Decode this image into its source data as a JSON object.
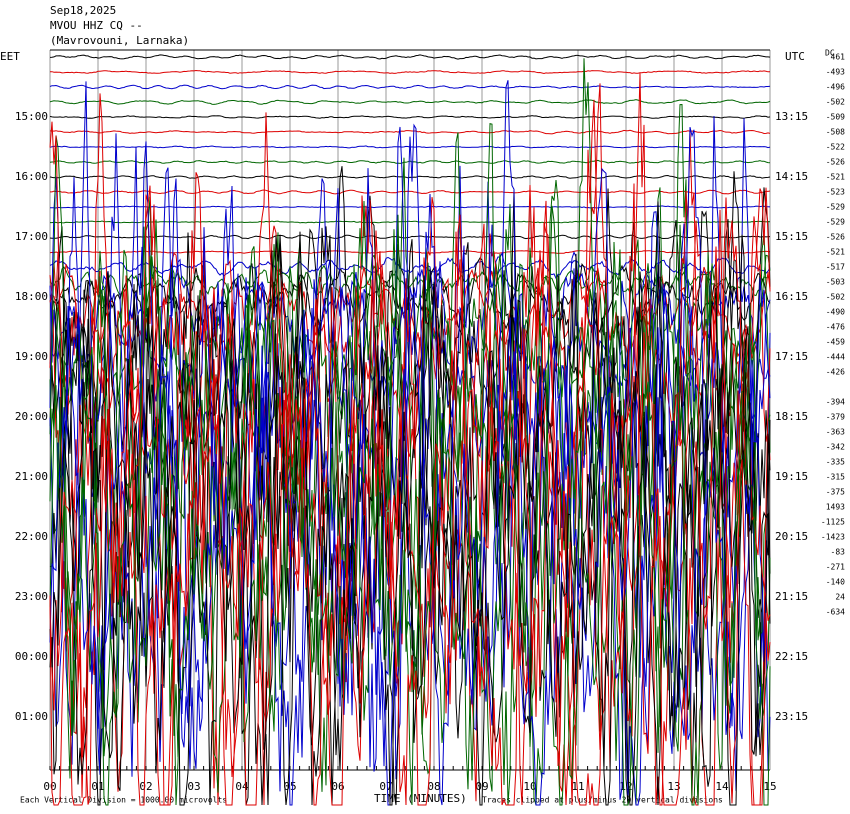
{
  "chart_data": {
    "type": "helicorder",
    "title": "Sep18,2025",
    "station": "MVOU HHZ CQ --",
    "location": "(Mavrovouni, Larnaka)",
    "left_zone": "EET",
    "right_zone": "UTC",
    "dc_label": "DC",
    "xlabel": "TIME (MINUTES)",
    "scale_note": "Each Vertical Division = 1000.00 microvolts",
    "clip_note": "Traces clipped at plus/minus 20 vertical divisions",
    "xlim": [
      0,
      15
    ],
    "xticks": [
      {
        "value": 0,
        "label": "00"
      },
      {
        "value": 1,
        "label": "01"
      },
      {
        "value": 2,
        "label": "02"
      },
      {
        "value": 3,
        "label": "03"
      },
      {
        "value": 4,
        "label": "04"
      },
      {
        "value": 5,
        "label": "05"
      },
      {
        "value": 6,
        "label": "06"
      },
      {
        "value": 7,
        "label": "07"
      },
      {
        "value": 8,
        "label": "08"
      },
      {
        "value": 9,
        "label": "09"
      },
      10,
      11,
      12,
      13,
      14,
      15
    ],
    "left_times": [
      "15:00",
      "16:00",
      "17:00",
      "18:00",
      "19:00",
      "20:00",
      "21:00",
      "22:00",
      "23:00",
      "00:00",
      "01:00"
    ],
    "right_times": [
      "13:15",
      "14:15",
      "15:15",
      "16:15",
      "17:15",
      "18:15",
      "19:15",
      "20:15",
      "21:15",
      "22:15",
      "23:15"
    ],
    "dc_offsets": [
      461,
      -493,
      -496,
      -502,
      -509,
      -508,
      -522,
      -526,
      -521,
      -523,
      -529,
      -529,
      -526,
      -521,
      -517,
      -503,
      -502,
      -490,
      -476,
      -459,
      -444,
      -426,
      null,
      -394,
      -379,
      -363,
      -342,
      -335,
      -315,
      -375,
      1493,
      -1125,
      -1423,
      -83,
      -271,
      -140,
      24,
      -634
    ],
    "colors": [
      "#000000",
      "#dd0000",
      "#0000cc",
      "#006600"
    ]
  }
}
